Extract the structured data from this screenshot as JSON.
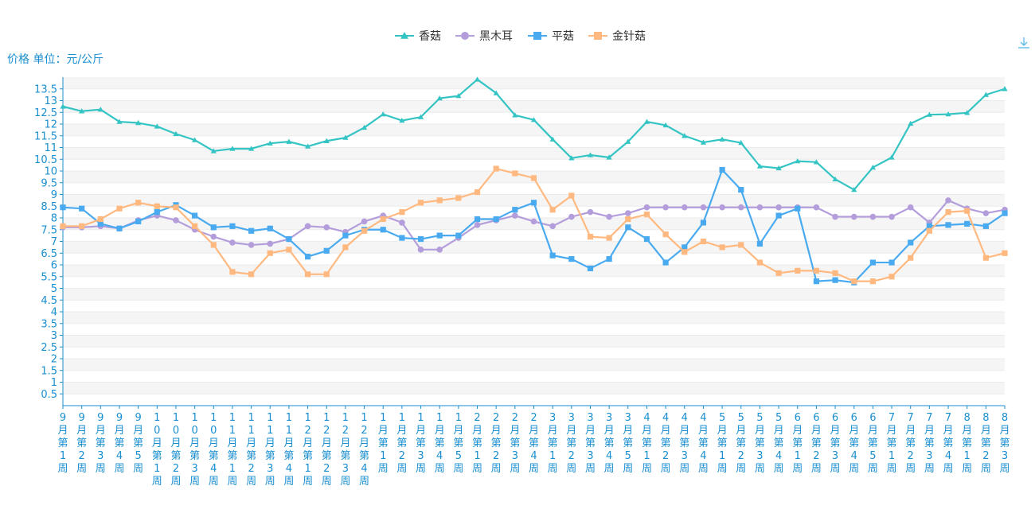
{
  "chart_data": {
    "type": "line",
    "unit_label": "价格 单位：元/公斤",
    "legend_position": "top-center",
    "grid": true,
    "ylim": [
      0,
      14
    ],
    "yticks": [
      0.5,
      1,
      1.5,
      2,
      2.5,
      3,
      3.5,
      4,
      4.5,
      5,
      5.5,
      6,
      6.5,
      7,
      7.5,
      8,
      8.5,
      9,
      9.5,
      10,
      10.5,
      11,
      11.5,
      12,
      12.5,
      13,
      13.5
    ],
    "categories": [
      "9月第1周",
      "9月第2周",
      "9月第3周",
      "9月第4周",
      "9月第5周",
      "10月第1周",
      "10月第2周",
      "10月第3周",
      "10月第4周",
      "11月第1周",
      "11月第2周",
      "11月第3周",
      "11月第4周",
      "12月第1周",
      "12月第2周",
      "12月第3周",
      "12月第4周",
      "1月第1周",
      "1月第2周",
      "1月第3周",
      "1月第4周",
      "1月第5周",
      "2月第1周",
      "2月第2周",
      "2月第3周",
      "2月第4周",
      "3月第1周",
      "3月第2周",
      "3月第3周",
      "3月第4周",
      "3月第5周",
      "4月第1周",
      "4月第2周",
      "4月第3周",
      "4月第4周",
      "5月第1周",
      "5月第2周",
      "5月第3周",
      "5月第4周",
      "6月第1周",
      "6月第2周",
      "6月第3周",
      "6月第4周",
      "6月第5周",
      "7月第1周",
      "7月第2周",
      "7月第3周",
      "7月第4周",
      "8月第1周",
      "8月第2周",
      "8月第3周"
    ],
    "series": [
      {
        "name": "香菇",
        "color": "#35c4c4",
        "marker": "triangle",
        "values": [
          12.75,
          12.55,
          12.62,
          12.1,
          12.05,
          11.9,
          11.58,
          11.32,
          10.85,
          10.95,
          10.95,
          11.18,
          11.25,
          11.05,
          11.28,
          11.42,
          11.85,
          12.42,
          12.15,
          12.3,
          13.1,
          13.2,
          13.9,
          13.32,
          12.38,
          12.18,
          11.35,
          10.55,
          10.68,
          10.58,
          11.25,
          12.1,
          11.95,
          11.5,
          11.22,
          11.35,
          11.2,
          10.2,
          10.12,
          10.42,
          10.38,
          9.65,
          9.2,
          10.15,
          10.58,
          12.02,
          12.4,
          12.42,
          12.48,
          13.25,
          13.5
        ]
      },
      {
        "name": "黑木耳",
        "color": "#b39ddb",
        "marker": "circle",
        "values": [
          7.6,
          7.6,
          7.65,
          7.55,
          7.9,
          8.1,
          7.9,
          7.5,
          7.2,
          6.95,
          6.85,
          6.9,
          7.1,
          7.65,
          7.6,
          7.4,
          7.85,
          8.1,
          7.8,
          6.65,
          6.65,
          7.15,
          7.7,
          7.9,
          8.1,
          7.85,
          7.65,
          8.05,
          8.25,
          8.05,
          8.2,
          8.45,
          8.45,
          8.45,
          8.45,
          8.45,
          8.45,
          8.45,
          8.45,
          8.45,
          8.45,
          8.05,
          8.05,
          8.05,
          8.05,
          8.45,
          7.8,
          8.75,
          8.4,
          8.2,
          8.35
        ]
      },
      {
        "name": "平菇",
        "color": "#4aaaf0",
        "marker": "square",
        "values": [
          8.45,
          8.4,
          7.75,
          7.55,
          7.85,
          8.25,
          8.55,
          8.1,
          7.6,
          7.65,
          7.45,
          7.55,
          7.1,
          6.35,
          6.6,
          7.25,
          7.5,
          7.5,
          7.15,
          7.1,
          7.25,
          7.25,
          7.95,
          7.95,
          8.35,
          8.65,
          6.4,
          6.25,
          5.85,
          6.25,
          7.6,
          7.1,
          6.1,
          6.75,
          7.8,
          10.05,
          9.2,
          6.9,
          8.1,
          8.4,
          5.3,
          5.35,
          5.25,
          6.1,
          6.1,
          6.95,
          7.65,
          7.7,
          7.75,
          7.65,
          8.2
        ]
      },
      {
        "name": "金针菇",
        "color": "#ffb980",
        "marker": "square",
        "values": [
          7.65,
          7.65,
          7.95,
          8.4,
          8.65,
          8.5,
          8.45,
          7.65,
          6.85,
          5.7,
          5.6,
          6.5,
          6.65,
          5.6,
          5.6,
          6.75,
          7.45,
          7.95,
          8.25,
          8.65,
          8.75,
          8.85,
          9.1,
          10.1,
          9.9,
          9.7,
          8.35,
          8.95,
          7.2,
          7.15,
          7.95,
          8.15,
          7.3,
          6.55,
          7.0,
          6.75,
          6.85,
          6.1,
          5.65,
          5.75,
          5.75,
          5.65,
          5.3,
          5.3,
          5.5,
          6.3,
          7.45,
          8.25,
          8.3,
          6.3,
          6.5
        ]
      }
    ]
  }
}
